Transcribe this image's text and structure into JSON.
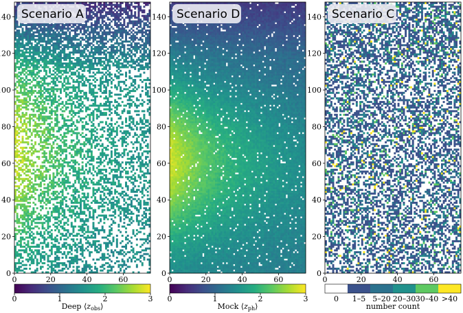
{
  "chart_data": [
    {
      "type": "heatmap",
      "title": "Scenario A",
      "colorbar_label_prefix": "Deep ⟨",
      "colorbar_label_var": "z",
      "colorbar_label_sub": "obs",
      "colorbar_label_suffix": "⟩",
      "xlim": [
        0,
        75
      ],
      "ylim": [
        0,
        148
      ],
      "xticks": [
        0,
        20,
        40,
        60
      ],
      "yticks": [
        0,
        20,
        40,
        60,
        80,
        100,
        120,
        140
      ],
      "cbar_range": [
        0,
        3
      ],
      "cbar_ticks": [
        0,
        1,
        2,
        3
      ],
      "pattern": "sparse-gradient",
      "fill_fraction": 0.55,
      "value_mean_low_y": 1.4,
      "value_peak_left": 2.8
    },
    {
      "type": "heatmap",
      "title": "Scenario D",
      "colorbar_label_prefix": "Mock ⟨",
      "colorbar_label_var": "z",
      "colorbar_label_sub": "ph",
      "colorbar_label_suffix": "⟩",
      "xlim": [
        0,
        75
      ],
      "ylim": [
        0,
        148
      ],
      "xticks": [
        0,
        20,
        40,
        60
      ],
      "yticks": [
        0,
        20,
        40,
        60,
        80,
        100,
        120,
        140
      ],
      "cbar_range": [
        0,
        3
      ],
      "cbar_ticks": [
        0,
        1,
        2,
        3
      ],
      "pattern": "dense-gradient",
      "fill_fraction": 0.95,
      "value_mean_low_y": 1.5,
      "value_peak_left": 2.7
    },
    {
      "type": "heatmap",
      "title": "Scenario C",
      "colorbar_label": "number count",
      "xlim": [
        0,
        75
      ],
      "ylim": [
        0,
        148
      ],
      "xticks": [
        0,
        20,
        40,
        60
      ],
      "yticks": [
        0,
        20,
        40,
        60,
        80,
        100,
        120,
        140
      ],
      "categories": [
        "0",
        "1–5",
        "5–20",
        "20–30",
        "30–40",
        ">40"
      ],
      "category_colors": [
        "#ffffff",
        "#3b528b",
        "#2c728e",
        "#21918c",
        "#5ec962",
        "#fde725"
      ],
      "pattern": "categorical-counts",
      "fill_fraction": 0.5
    }
  ],
  "colors": {
    "viridis": [
      "#440154",
      "#472c7a",
      "#3b518b",
      "#2c718e",
      "#21908d",
      "#27ad81",
      "#5cc863",
      "#aadc32",
      "#fde725"
    ],
    "empty_cell": "#ffffff",
    "title_box": "#e8e8f0"
  }
}
